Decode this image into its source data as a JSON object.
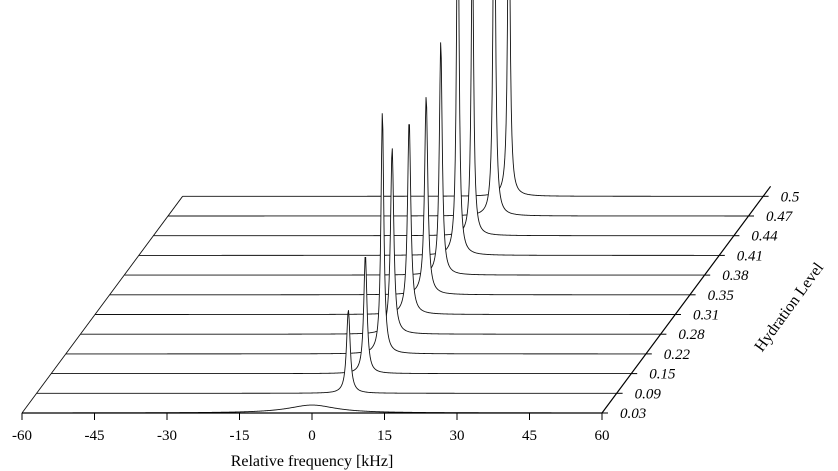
{
  "chart_data": {
    "type": "line",
    "title": "",
    "xlabel": "Relative frequency [kHz]",
    "zlabel": "Hydration Level",
    "x_ticks": [
      "-60",
      "-45",
      "-30",
      "-15",
      "0",
      "15",
      "30",
      "45",
      "60"
    ],
    "xlim": [
      -60,
      60
    ],
    "grid": false,
    "series": [
      {
        "name": "0.03",
        "peak_x": 0,
        "peak_height": 0.02,
        "width": 6.0
      },
      {
        "name": "0.09",
        "peak_x": 4.5,
        "peak_height": 0.21,
        "width": 0.45
      },
      {
        "name": "0.15",
        "peak_x": 5.0,
        "peak_height": 0.3,
        "width": 0.4
      },
      {
        "name": "0.22",
        "peak_x": 5.5,
        "peak_height": 0.61,
        "width": 0.35
      },
      {
        "name": "0.28",
        "peak_x": 4.5,
        "peak_height": 0.47,
        "width": 0.4
      },
      {
        "name": "0.31",
        "peak_x": 5.0,
        "peak_height": 0.49,
        "width": 0.4
      },
      {
        "name": "0.35",
        "peak_x": 5.5,
        "peak_height": 0.5,
        "width": 0.4
      },
      {
        "name": "0.38",
        "peak_x": 5.5,
        "peak_height": 0.59,
        "width": 0.35
      },
      {
        "name": "0.41",
        "peak_x": 6.0,
        "peak_height": 1.0,
        "width": 0.3
      },
      {
        "name": "0.44",
        "peak_x": 6.0,
        "peak_height": 0.76,
        "width": 0.3
      },
      {
        "name": "0.47",
        "peak_x": 7.5,
        "peak_height": 0.95,
        "width": 0.3
      },
      {
        "name": "0.5",
        "peak_x": 7.5,
        "peak_height": 0.84,
        "width": 0.3
      }
    ]
  }
}
